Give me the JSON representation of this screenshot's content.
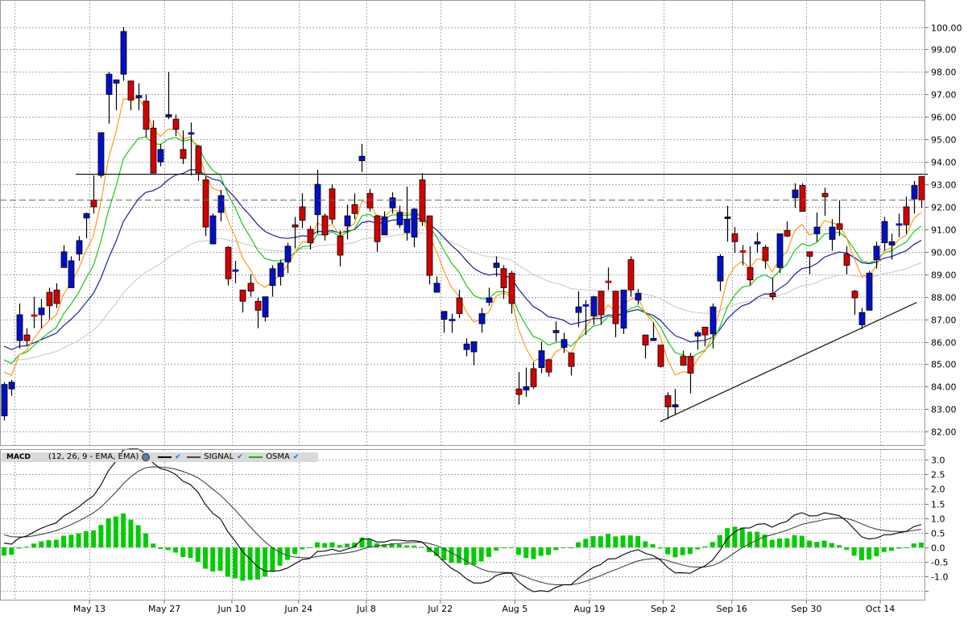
{
  "chart_data": {
    "type": "candlestick",
    "title": "",
    "colors": {
      "up": "#0010c8",
      "down": "#d40000",
      "unchanged": "#000000",
      "grid": "#a8a8a8",
      "ema_fast": "#ff9a1a",
      "ema_mid": "#19c819",
      "ema_slow": "#1c1ca0",
      "ema_long": "#cfcfcf",
      "osma": "#00cc00",
      "macd": "#000000",
      "signal": "#444444"
    },
    "price_axis": {
      "ylim": [
        81.4,
        101.2
      ],
      "ticks": [
        82,
        83,
        84,
        85,
        86,
        87,
        88,
        89,
        90,
        91,
        92,
        93,
        94,
        95,
        96,
        97,
        98,
        99,
        100
      ],
      "tick_labels": [
        "82.00",
        "83.00",
        "84.00",
        "85.00",
        "86.00",
        "87.00",
        "88.00",
        "89.00",
        "90.00",
        "91.00",
        "92.00",
        "93.00",
        "94.00",
        "95.00",
        "96.00",
        "97.00",
        "98.00",
        "99.00",
        "100.00"
      ]
    },
    "x_axis": {
      "gridline_indices": [
        1.4,
        11.45,
        21.5,
        30.55,
        39.5,
        48.6,
        58.5,
        68.5,
        78.5,
        88.4,
        97.6,
        107.6,
        117.5
      ],
      "ticks": [
        {
          "label": "May 13",
          "index": 11.45
        },
        {
          "label": "May 27",
          "index": 21.5
        },
        {
          "label": "Jun 10",
          "index": 30.55
        },
        {
          "label": "Jun 24",
          "index": 39.5
        },
        {
          "label": "Jul 8",
          "index": 48.6
        },
        {
          "label": "Jul 22",
          "index": 58.5
        },
        {
          "label": "Aug 5",
          "index": 68.5
        },
        {
          "label": "Aug 19",
          "index": 78.5
        },
        {
          "label": "Sep 2",
          "index": 88.4
        },
        {
          "label": "Sep 16",
          "index": 97.6
        },
        {
          "label": "Sep 30",
          "index": 107.6
        },
        {
          "label": "Oct 14",
          "index": 117.5
        }
      ]
    },
    "candles_ohlc": [
      [
        82.7,
        84.2,
        82.5,
        84.1
      ],
      [
        83.9,
        84.3,
        83.6,
        84.2
      ],
      [
        86.05,
        87.7,
        85.7,
        87.2
      ],
      [
        86.3,
        86.6,
        85.8,
        86.05
      ],
      [
        87.2,
        88.0,
        86.6,
        87.15
      ],
      [
        87.2,
        87.9,
        86.6,
        87.5
      ],
      [
        88.2,
        88.4,
        87.0,
        87.6
      ],
      [
        88.3,
        88.6,
        87.5,
        87.7
      ],
      [
        89.3,
        90.3,
        89.3,
        90.0
      ],
      [
        88.4,
        89.8,
        88.4,
        89.6
      ],
      [
        89.9,
        90.7,
        89.6,
        90.5
      ],
      [
        91.5,
        91.75,
        90.6,
        91.7
      ],
      [
        92.3,
        93.4,
        91.7,
        92.0
      ],
      [
        93.4,
        95.3,
        93.3,
        95.3
      ],
      [
        97.0,
        98.0,
        95.7,
        97.9
      ],
      [
        97.5,
        97.65,
        96.3,
        97.65
      ],
      [
        97.9,
        100.0,
        97.6,
        99.8
      ],
      [
        97.6,
        97.6,
        96.3,
        96.75
      ],
      [
        96.85,
        97.5,
        96.3,
        96.95
      ],
      [
        96.7,
        97.0,
        95.1,
        95.45
      ],
      [
        95.5,
        95.85,
        93.5,
        93.5
      ],
      [
        94.0,
        94.8,
        93.8,
        94.55
      ],
      [
        96.0,
        98.0,
        95.9,
        96.1
      ],
      [
        95.9,
        96.1,
        95.15,
        95.45
      ],
      [
        94.55,
        95.4,
        93.9,
        94.15
      ],
      [
        95.25,
        95.75,
        93.4,
        95.3
      ],
      [
        94.7,
        94.75,
        93.15,
        93.5
      ],
      [
        93.2,
        93.35,
        90.7,
        91.1
      ],
      [
        90.35,
        91.7,
        90.35,
        91.6
      ],
      [
        91.75,
        92.75,
        91.35,
        92.5
      ],
      [
        90.2,
        90.25,
        88.5,
        88.8
      ],
      [
        89.15,
        89.6,
        88.6,
        89.2
      ],
      [
        88.3,
        88.3,
        87.3,
        87.8
      ],
      [
        88.6,
        89.0,
        88.0,
        88.25
      ],
      [
        87.8,
        87.95,
        86.6,
        87.4
      ],
      [
        87.1,
        88.0,
        86.9,
        88.0
      ],
      [
        88.5,
        89.4,
        88.0,
        89.25
      ],
      [
        88.9,
        89.65,
        88.5,
        89.5
      ],
      [
        89.55,
        90.4,
        89.05,
        90.25
      ],
      [
        91.2,
        91.55,
        90.15,
        91.1
      ],
      [
        92.0,
        92.6,
        91.05,
        91.4
      ],
      [
        91.0,
        91.15,
        90.1,
        90.4
      ],
      [
        91.65,
        93.65,
        90.8,
        93.0
      ],
      [
        91.6,
        91.7,
        90.5,
        90.75
      ],
      [
        92.8,
        93.0,
        91.25,
        91.45
      ],
      [
        90.7,
        90.95,
        89.35,
        89.85
      ],
      [
        91.15,
        92.1,
        90.55,
        91.6
      ],
      [
        92.1,
        92.6,
        91.45,
        91.7
      ],
      [
        94.05,
        94.8,
        93.55,
        94.25
      ],
      [
        92.6,
        92.8,
        91.8,
        91.95
      ],
      [
        91.6,
        91.65,
        90.0,
        90.45
      ],
      [
        90.75,
        91.8,
        90.75,
        91.55
      ],
      [
        91.95,
        92.65,
        91.7,
        92.4
      ],
      [
        91.2,
        92.05,
        91.05,
        91.75
      ],
      [
        90.85,
        92.9,
        90.5,
        91.45
      ],
      [
        90.65,
        91.95,
        90.2,
        91.9
      ],
      [
        93.2,
        93.5,
        91.15,
        91.35
      ],
      [
        91.6,
        91.6,
        88.55,
        88.95
      ],
      [
        88.2,
        88.9,
        88.2,
        88.6
      ],
      [
        87.0,
        87.35,
        86.4,
        87.35
      ],
      [
        86.95,
        87.25,
        86.4,
        87.0
      ],
      [
        87.95,
        88.3,
        87.05,
        87.25
      ],
      [
        85.65,
        86.15,
        85.35,
        85.9
      ],
      [
        85.55,
        86.0,
        84.95,
        86.0
      ],
      [
        86.8,
        87.5,
        86.4,
        87.25
      ],
      [
        87.75,
        88.4,
        87.6,
        87.95
      ],
      [
        89.3,
        89.8,
        88.9,
        89.5
      ],
      [
        89.25,
        89.4,
        87.9,
        88.4
      ],
      [
        89.05,
        89.15,
        87.25,
        87.7
      ],
      [
        83.9,
        84.65,
        83.2,
        83.65
      ],
      [
        83.85,
        84.85,
        83.55,
        84.0
      ],
      [
        84.8,
        85.1,
        83.9,
        84.0
      ],
      [
        84.85,
        86.0,
        84.6,
        85.6
      ],
      [
        85.2,
        85.25,
        84.45,
        84.65
      ],
      [
        86.4,
        86.9,
        86.0,
        86.5
      ],
      [
        85.75,
        86.4,
        85.5,
        86.1
      ],
      [
        85.5,
        85.5,
        84.5,
        84.9
      ],
      [
        87.3,
        88.25,
        86.65,
        87.55
      ],
      [
        87.6,
        87.85,
        86.3,
        87.65
      ],
      [
        87.15,
        88.05,
        86.75,
        88.0
      ],
      [
        88.25,
        88.25,
        86.75,
        87.2
      ],
      [
        88.7,
        89.3,
        88.3,
        88.65
      ],
      [
        88.25,
        88.25,
        86.2,
        86.8
      ],
      [
        86.6,
        88.3,
        86.35,
        88.3
      ],
      [
        89.65,
        89.8,
        88.0,
        88.3
      ],
      [
        87.85,
        88.35,
        87.65,
        88.15
      ],
      [
        86.3,
        86.3,
        85.25,
        85.85
      ],
      [
        86.05,
        86.85,
        86.05,
        86.15
      ],
      [
        85.85,
        85.85,
        84.85,
        84.9
      ],
      [
        83.6,
        83.75,
        82.55,
        83.1
      ],
      [
        83.1,
        83.9,
        82.75,
        83.2
      ],
      [
        85.35,
        85.6,
        84.95,
        84.95
      ],
      [
        85.35,
        85.5,
        83.7,
        84.6
      ],
      [
        86.25,
        86.5,
        85.65,
        86.4
      ],
      [
        86.65,
        86.65,
        85.8,
        86.3
      ],
      [
        86.35,
        87.7,
        85.7,
        87.55
      ],
      [
        88.7,
        89.9,
        88.25,
        89.8
      ],
      [
        91.55,
        92.05,
        90.45,
        91.55
      ],
      [
        90.8,
        91.1,
        89.95,
        90.45
      ],
      [
        90.05,
        90.3,
        89.4,
        90.0
      ],
      [
        89.3,
        90.25,
        88.5,
        88.75
      ],
      [
        90.35,
        90.85,
        89.95,
        90.45
      ],
      [
        90.2,
        90.3,
        89.25,
        89.6
      ],
      [
        88.15,
        88.85,
        87.85,
        88.0
      ],
      [
        89.3,
        90.8,
        89.05,
        90.8
      ],
      [
        90.95,
        91.35,
        90.65,
        90.7
      ],
      [
        92.4,
        93.05,
        91.95,
        92.75
      ],
      [
        92.95,
        93.05,
        91.8,
        91.8
      ],
      [
        90.0,
        90.0,
        89.0,
        89.8
      ],
      [
        90.8,
        91.75,
        90.45,
        91.1
      ],
      [
        92.6,
        92.85,
        91.6,
        92.45
      ],
      [
        90.55,
        91.45,
        90.05,
        91.1
      ],
      [
        91.25,
        92.3,
        90.7,
        91.0
      ],
      [
        89.9,
        90.25,
        89.0,
        89.4
      ],
      [
        88.25,
        88.3,
        87.2,
        87.95
      ],
      [
        86.75,
        87.5,
        86.55,
        87.3
      ],
      [
        87.4,
        89.15,
        87.4,
        89.05
      ],
      [
        89.65,
        90.45,
        89.25,
        90.25
      ],
      [
        90.4,
        91.55,
        90.05,
        91.35
      ],
      [
        90.3,
        90.8,
        89.65,
        90.45
      ],
      [
        91.2,
        91.7,
        90.65,
        91.25
      ],
      [
        92.0,
        92.45,
        90.8,
        91.2
      ],
      [
        92.35,
        93.15,
        91.7,
        92.95
      ],
      [
        93.35,
        93.35,
        91.95,
        92.3
      ]
    ],
    "moving_averages": [
      {
        "name": "ema_fast",
        "period": 5,
        "initial": 84.65
      },
      {
        "name": "ema_mid",
        "period": 10,
        "initial": 85.2
      },
      {
        "name": "ema_slow",
        "period": 20,
        "initial": 85.8
      },
      {
        "name": "ema_long",
        "period": 50,
        "initial": 85.15
      }
    ],
    "annotations": {
      "resistance_line": {
        "price": 93.45,
        "from_index": 9.6,
        "to_index": 123.9
      },
      "last_price_line": {
        "price": 92.3
      },
      "trend_line": {
        "from": [
          88.0,
          82.45
        ],
        "to": [
          122.4,
          87.75
        ]
      }
    },
    "macd": {
      "fast": 12,
      "slow": 26,
      "signal": 9,
      "initial": {
        "ema_fast": 84.6,
        "ema_slow": 84.4,
        "signal": 0.5
      },
      "ylim": [
        -1.79,
        3.36
      ],
      "ticks": [
        -1.5,
        -1.0,
        -0.5,
        0.0,
        0.5,
        1.0,
        1.5,
        2.0,
        2.5,
        3.0
      ],
      "tick_labels": [
        "",
        "-1.0",
        "-0.5",
        "0.0",
        "0.5",
        "1.0",
        "1.5",
        "2.0",
        "2.5",
        "3.0"
      ]
    }
  },
  "legend": {
    "title": "MACD",
    "params": "(12, 26, 9 - EMA, EMA)",
    "signal_label": "SIGNAL",
    "osma_label": "OSMA",
    "check": "✔"
  }
}
